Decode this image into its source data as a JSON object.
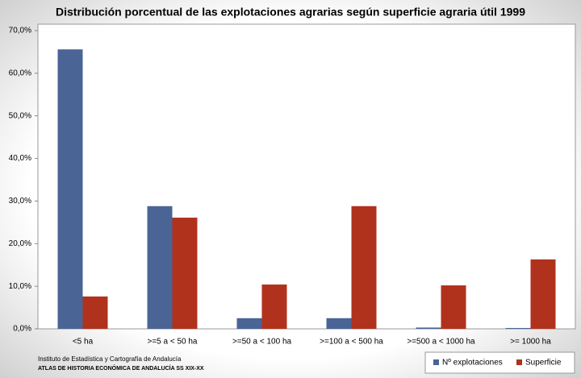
{
  "chart_data": {
    "type": "bar",
    "title": "Distribución porcentual de las explotaciones agrarias según superficie agraria útil 1999",
    "categories": [
      "<5 ha",
      ">=5 a < 50 ha",
      ">=50 a < 100 ha",
      ">=100 a < 500 ha",
      ">=500 a < 1000 ha",
      ">= 1000 ha"
    ],
    "series": [
      {
        "name": "Nº explotaciones",
        "color": "#4a6496",
        "values": [
          65.6,
          28.8,
          2.5,
          2.5,
          0.3,
          0.2
        ]
      },
      {
        "name": "Superficie",
        "color": "#b0321c",
        "values": [
          7.6,
          26.1,
          10.4,
          28.8,
          10.2,
          16.3
        ]
      }
    ],
    "ylim": [
      0,
      70
    ],
    "yticks": [
      {
        "value": 0,
        "label": "0,0%"
      },
      {
        "value": 10,
        "label": "10,0%"
      },
      {
        "value": 20,
        "label": "20,0%"
      },
      {
        "value": 30,
        "label": "30,0%"
      },
      {
        "value": 40,
        "label": "40,0%"
      },
      {
        "value": 50,
        "label": "50,0%"
      },
      {
        "value": 60,
        "label": "60,0%"
      },
      {
        "value": 70,
        "label": "70,0%"
      }
    ],
    "grid": false,
    "legend": "bottom-right",
    "source": "Instituto de Estadística y Cartografía de Andalucía",
    "source_note": "ATLAS DE HISTORIA ECONÓMICA DE ANDALUCÍA SS XIX-XX"
  }
}
